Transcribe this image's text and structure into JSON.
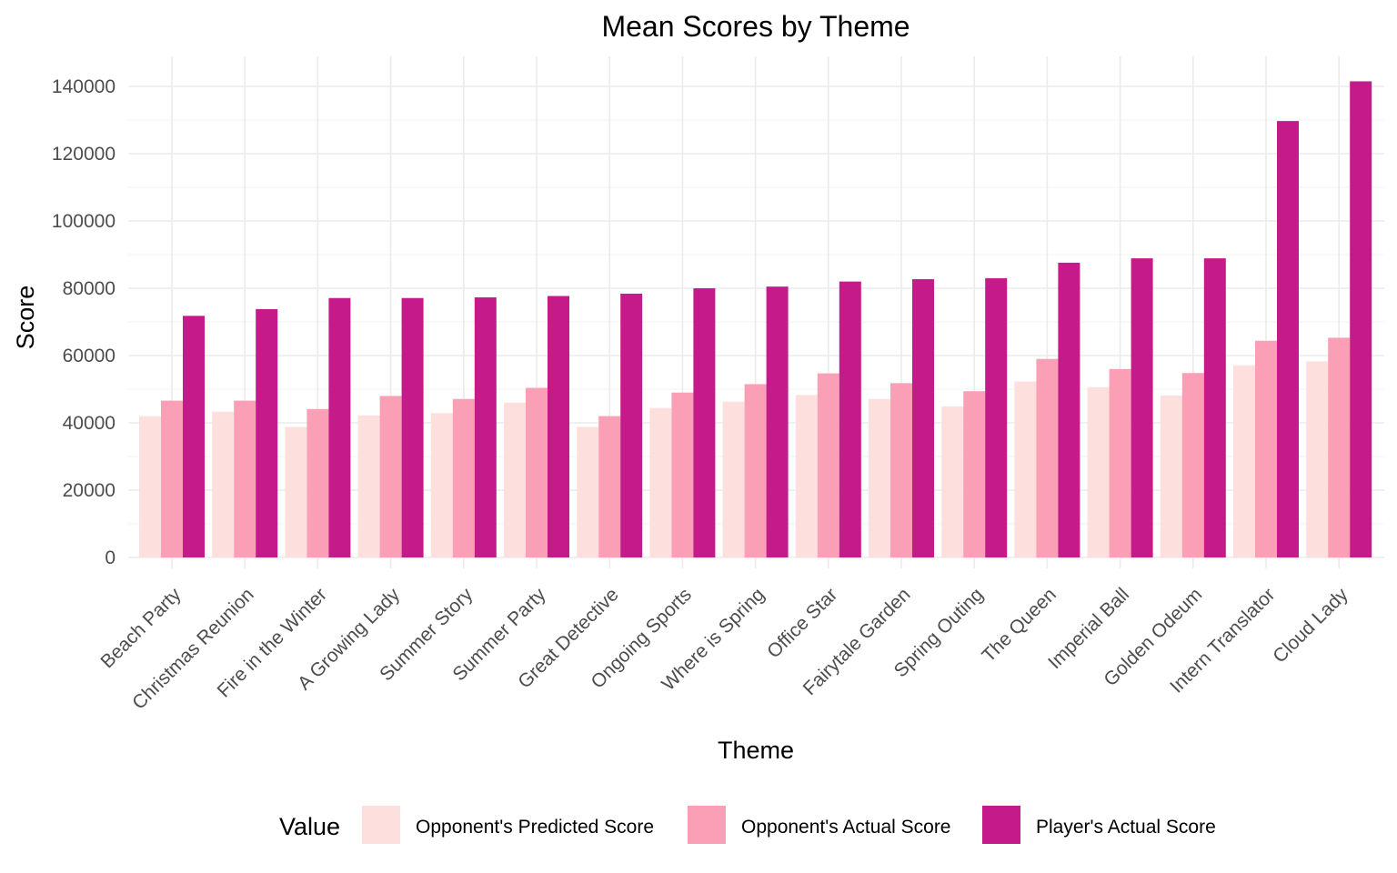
{
  "chart_data": {
    "type": "bar",
    "title": "Mean Scores by Theme",
    "xlabel": "Theme",
    "ylabel": "Score",
    "ylim": [
      0,
      148000
    ],
    "yticks": [
      0,
      20000,
      40000,
      60000,
      80000,
      100000,
      120000,
      140000
    ],
    "ytick_labels": [
      "0",
      "20000",
      "40000",
      "60000",
      "80000",
      "100000",
      "120000",
      "140000"
    ],
    "grid": true,
    "legend_title": "Value",
    "legend_position": "bottom",
    "categories": [
      "Beach Party",
      "Christmas Reunion",
      "Fire in the Winter",
      "A Growing Lady",
      "Summer Story",
      "Summer Party",
      "Great Detective",
      "Ongoing Sports",
      "Where is Spring",
      "Office Star",
      "Fairytale Garden",
      "Spring Outing",
      "The Queen",
      "Imperial Ball",
      "Golden Odeum",
      "Intern Translator",
      "Cloud Lady"
    ],
    "series": [
      {
        "name": "Opponent's Predicted Score",
        "color": "#fde0dd",
        "values": [
          42000,
          43300,
          38800,
          42200,
          42900,
          46000,
          38800,
          44400,
          46300,
          48300,
          47100,
          44900,
          52300,
          50600,
          48100,
          57100,
          58300
        ]
      },
      {
        "name": "Opponent's Actual Score",
        "color": "#fa9fb5",
        "values": [
          46600,
          46600,
          44100,
          48000,
          47100,
          50400,
          42000,
          49000,
          51500,
          54700,
          51800,
          49400,
          59000,
          56000,
          54800,
          64400,
          65300
        ]
      },
      {
        "name": "Player's Actual Score",
        "color": "#c51b8a",
        "values": [
          71800,
          73800,
          77100,
          77100,
          77300,
          77700,
          78400,
          80000,
          80500,
          82000,
          82700,
          83000,
          87600,
          88900,
          88900,
          129700,
          141500
        ]
      }
    ]
  }
}
